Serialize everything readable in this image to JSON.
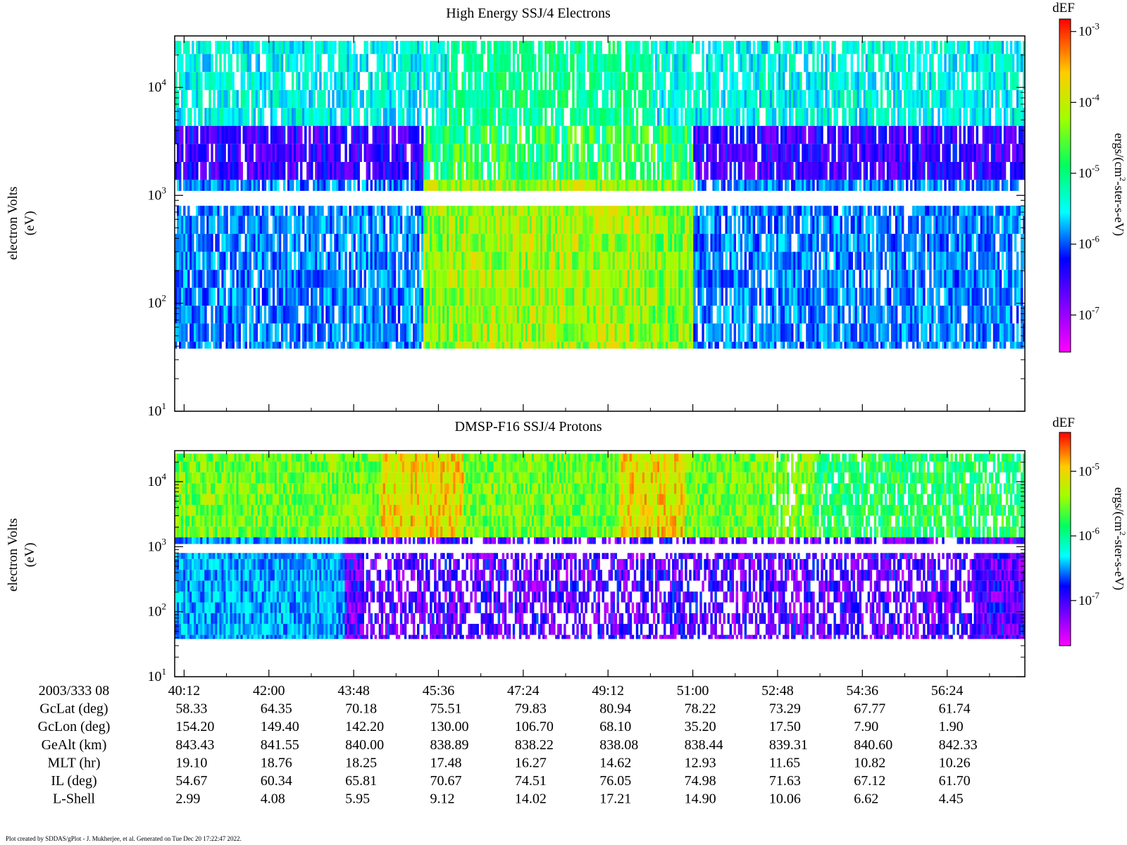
{
  "chart_data": [
    {
      "type": "heatmap",
      "title": "High Energy SSJ/4 Electrons",
      "ylabel_line1": "electron Volts",
      "ylabel_line2": "(eV)",
      "y_scale": "log",
      "ylim": [
        10,
        30000
      ],
      "y_ticks": [
        {
          "base": "10",
          "exp": "1",
          "value": 10
        },
        {
          "base": "10",
          "exp": "2",
          "value": 100
        },
        {
          "base": "10",
          "exp": "3",
          "value": 1000
        },
        {
          "base": "10",
          "exp": "4",
          "value": 10000
        }
      ],
      "colorbar": {
        "title": "dEF",
        "label_main": "ergs/(cm",
        "label_sup": "2",
        "label_rest": "-ster-s-eV)",
        "scale": "log",
        "range": [
          3e-08,
          0.0015
        ],
        "ticks": [
          {
            "base": "10",
            "exp": "-3",
            "value": 0.001
          },
          {
            "base": "10",
            "exp": "-4",
            "value": 0.0001
          },
          {
            "base": "10",
            "exp": "-5",
            "value": 1e-05
          },
          {
            "base": "10",
            "exp": "-6",
            "value": 1e-06
          },
          {
            "base": "10",
            "exp": "-7",
            "value": 1e-07
          }
        ]
      },
      "energy_channels_eV": [
        30000,
        20400,
        13900,
        9450,
        6460,
        4400,
        3000,
        2040,
        1392,
        949,
        646,
        440,
        300,
        204,
        139,
        95,
        65,
        44,
        30
      ],
      "missing_band_eV": [
        800,
        1100
      ],
      "lowest_data_eV": 38
    },
    {
      "type": "heatmap",
      "title": "DMSP-F16 SSJ/4 Protons",
      "ylabel_line1": "electron Volts",
      "ylabel_line2": "(eV)",
      "y_scale": "log",
      "ylim": [
        10,
        30000
      ],
      "y_ticks": [
        {
          "base": "10",
          "exp": "1",
          "value": 10
        },
        {
          "base": "10",
          "exp": "2",
          "value": 100
        },
        {
          "base": "10",
          "exp": "3",
          "value": 1000
        },
        {
          "base": "10",
          "exp": "4",
          "value": 10000
        }
      ],
      "colorbar": {
        "title": "dEF",
        "label_main": "ergs/(cm",
        "label_sup": "2",
        "label_rest": "-ster-s-eV)",
        "scale": "log",
        "range": [
          2e-08,
          4e-05
        ],
        "ticks": [
          {
            "base": "10",
            "exp": "-5",
            "value": 1e-05
          },
          {
            "base": "10",
            "exp": "-6",
            "value": 1e-06
          },
          {
            "base": "10",
            "exp": "-7",
            "value": 1e-07
          }
        ]
      },
      "missing_band_eV": [
        800,
        1100
      ],
      "lowest_data_eV": 38
    }
  ],
  "x_axis": {
    "start_label": "2003/333 08",
    "time_ticks": [
      "40:12",
      "42:00",
      "43:48",
      "45:36",
      "47:24",
      "49:12",
      "51:00",
      "52:48",
      "54:36",
      "56:24"
    ],
    "range_minutes": [
      40.0,
      58.05
    ]
  },
  "ephemeris": [
    {
      "label": "GcLat (deg)",
      "values": [
        "58.33",
        "64.35",
        "70.18",
        "75.51",
        "79.83",
        "80.94",
        "78.22",
        "73.29",
        "67.77",
        "61.74"
      ]
    },
    {
      "label": "GcLon (deg)",
      "values": [
        "154.20",
        "149.40",
        "142.20",
        "130.00",
        "106.70",
        "68.10",
        "35.20",
        "17.50",
        "7.90",
        "1.90"
      ]
    },
    {
      "label": "GeAlt (km)",
      "values": [
        "843.43",
        "841.55",
        "840.00",
        "838.89",
        "838.22",
        "838.08",
        "838.44",
        "839.31",
        "840.60",
        "842.33"
      ]
    },
    {
      "label": "MLT (hr)",
      "values": [
        "19.10",
        "18.76",
        "18.25",
        "17.48",
        "16.27",
        "14.62",
        "12.93",
        "11.65",
        "10.82",
        "10.26"
      ]
    },
    {
      "label": "IL (deg)",
      "values": [
        "54.67",
        "60.34",
        "65.81",
        "70.67",
        "74.51",
        "76.05",
        "74.98",
        "71.63",
        "67.12",
        "61.70"
      ]
    },
    {
      "label": "L-Shell",
      "values": [
        "2.99",
        "4.08",
        "5.95",
        "9.12",
        "14.02",
        "17.21",
        "14.90",
        "10.06",
        "6.62",
        "4.45"
      ]
    }
  ],
  "footer": "Plot created by SDDAS/gPlot - J. Mukherjee, et al.  Generated on Tue Dec 20 17:22:47 2022."
}
